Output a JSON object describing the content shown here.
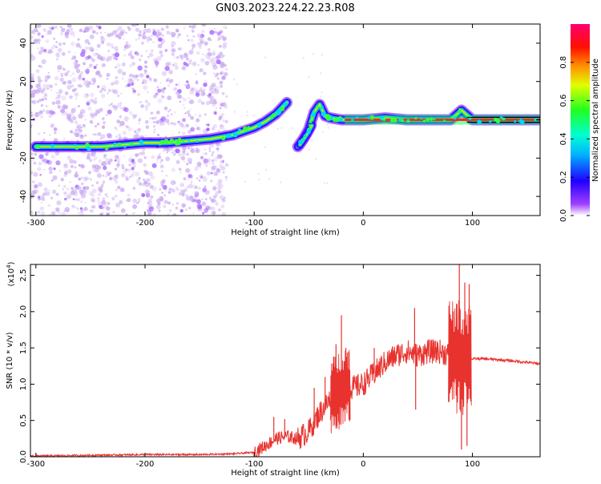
{
  "figure_title": "GN03.2023.224.22.23.R08",
  "colors": {
    "snr_line": "#e8322e",
    "band_core": "#ff2a1a",
    "noise": "#c8a8f0",
    "background": "#ffffff"
  },
  "chart_data": [
    {
      "type": "heatmap",
      "title": "GN03.2023.224.22.23.R08",
      "xlabel": "Height of straight line (km)",
      "ylabel": "Frequency (Hz)",
      "xlim": [
        -305,
        162
      ],
      "ylim": [
        -50,
        50
      ],
      "xticks": [
        -300,
        -200,
        -100,
        0,
        100
      ],
      "yticks": [
        -40,
        -20,
        0,
        20,
        40
      ],
      "xtick_labels": [
        "-300",
        "-200",
        "-100",
        "0",
        "100"
      ],
      "ytick_labels": [
        "-40",
        "-20",
        "0",
        "20",
        "40"
      ],
      "colorbar": {
        "label": "Normalized spectral amplitude",
        "range": [
          0,
          1
        ],
        "ticks": [
          0.0,
          0.2,
          0.4,
          0.6,
          0.8
        ],
        "tick_labels": [
          "0.0",
          "0.2",
          "0.4",
          "0.6",
          "0.8"
        ],
        "colormap": [
          "#ffffff",
          "#8a00ff",
          "#0000ff",
          "#00c8ff",
          "#00ff40",
          "#ffff00",
          "#ff8000",
          "#ff0000",
          "#ff0070"
        ]
      },
      "ridge": [
        {
          "x": -300,
          "y": -14
        },
        {
          "x": -280,
          "y": -14
        },
        {
          "x": -260,
          "y": -14
        },
        {
          "x": -240,
          "y": -14
        },
        {
          "x": -220,
          "y": -13
        },
        {
          "x": -200,
          "y": -12
        },
        {
          "x": -180,
          "y": -12
        },
        {
          "x": -160,
          "y": -11
        },
        {
          "x": -140,
          "y": -10
        },
        {
          "x": -120,
          "y": -8
        },
        {
          "x": -110,
          "y": -6
        },
        {
          "x": -100,
          "y": -4
        },
        {
          "x": -90,
          "y": -1
        },
        {
          "x": -80,
          "y": 3
        },
        {
          "x": -70,
          "y": 9
        },
        {
          "x": -60,
          "y": -14
        },
        {
          "x": -55,
          "y": -10
        },
        {
          "x": -50,
          "y": -5
        },
        {
          "x": -45,
          "y": 4
        },
        {
          "x": -40,
          "y": 8
        },
        {
          "x": -35,
          "y": 2
        },
        {
          "x": -30,
          "y": 1
        },
        {
          "x": -20,
          "y": 0
        },
        {
          "x": 0,
          "y": 0
        },
        {
          "x": 20,
          "y": 1
        },
        {
          "x": 40,
          "y": 0
        },
        {
          "x": 60,
          "y": 0
        },
        {
          "x": 80,
          "y": 0
        },
        {
          "x": 90,
          "y": 5
        },
        {
          "x": 100,
          "y": 0
        },
        {
          "x": 130,
          "y": 0
        },
        {
          "x": 160,
          "y": 0
        }
      ]
    },
    {
      "type": "line",
      "xlabel": "Height of straight line (km)",
      "ylabel": "SNR (10 * v/v)",
      "y_multiplier_label": "(x10",
      "y_multiplier_exp": "4",
      "y_multiplier_close": ")",
      "xlim": [
        -305,
        162
      ],
      "ylim": [
        0,
        2.65
      ],
      "xticks": [
        -300,
        -200,
        -100,
        0,
        100
      ],
      "yticks": [
        0.0,
        0.5,
        1.0,
        1.5,
        2.0,
        2.5
      ],
      "xtick_labels": [
        "-300",
        "-200",
        "-100",
        "0",
        "100"
      ],
      "ytick_labels": [
        "0.0",
        "0.5",
        "1.0",
        "1.5",
        "2.0",
        "2.5"
      ],
      "series": [
        {
          "x": [
            -305,
            -250,
            -200,
            -150,
            -120,
            -100,
            -90,
            -80,
            -70,
            -60,
            -50,
            -40,
            -30,
            -20,
            -15,
            -10,
            0,
            10,
            20,
            30,
            40,
            50,
            60,
            70,
            80,
            85,
            90,
            95,
            100,
            110,
            130,
            150,
            162
          ],
          "y": [
            0.01,
            0.02,
            0.03,
            0.03,
            0.04,
            0.06,
            0.15,
            0.25,
            0.28,
            0.25,
            0.35,
            0.6,
            0.8,
            0.95,
            1.0,
            0.95,
            1.0,
            1.15,
            1.3,
            1.4,
            1.45,
            1.4,
            1.45,
            1.45,
            1.4,
            1.4,
            1.35,
            1.35,
            1.35,
            1.35,
            1.33,
            1.3,
            1.28
          ]
        }
      ],
      "spikes": [
        {
          "x": -82,
          "y": 0.55
        },
        {
          "x": -72,
          "y": 0.52
        },
        {
          "x": -45,
          "y": 0.95
        },
        {
          "x": -35,
          "y": 1.1
        },
        {
          "x": -25,
          "y": 1.55
        },
        {
          "x": -20,
          "y": 1.95
        },
        {
          "x": -16,
          "y": 1.5
        },
        {
          "x": 10,
          "y": 1.5
        },
        {
          "x": 47,
          "y": 2.05
        },
        {
          "x": 48,
          "y": 0.65
        },
        {
          "x": 66,
          "y": 1.6
        },
        {
          "x": 80,
          "y": 1.8
        },
        {
          "x": 88,
          "y": 2.65
        },
        {
          "x": 90,
          "y": 0.1
        },
        {
          "x": 93,
          "y": 2.4
        },
        {
          "x": 97,
          "y": 2.38
        },
        {
          "x": 95,
          "y": 0.15
        }
      ]
    }
  ]
}
